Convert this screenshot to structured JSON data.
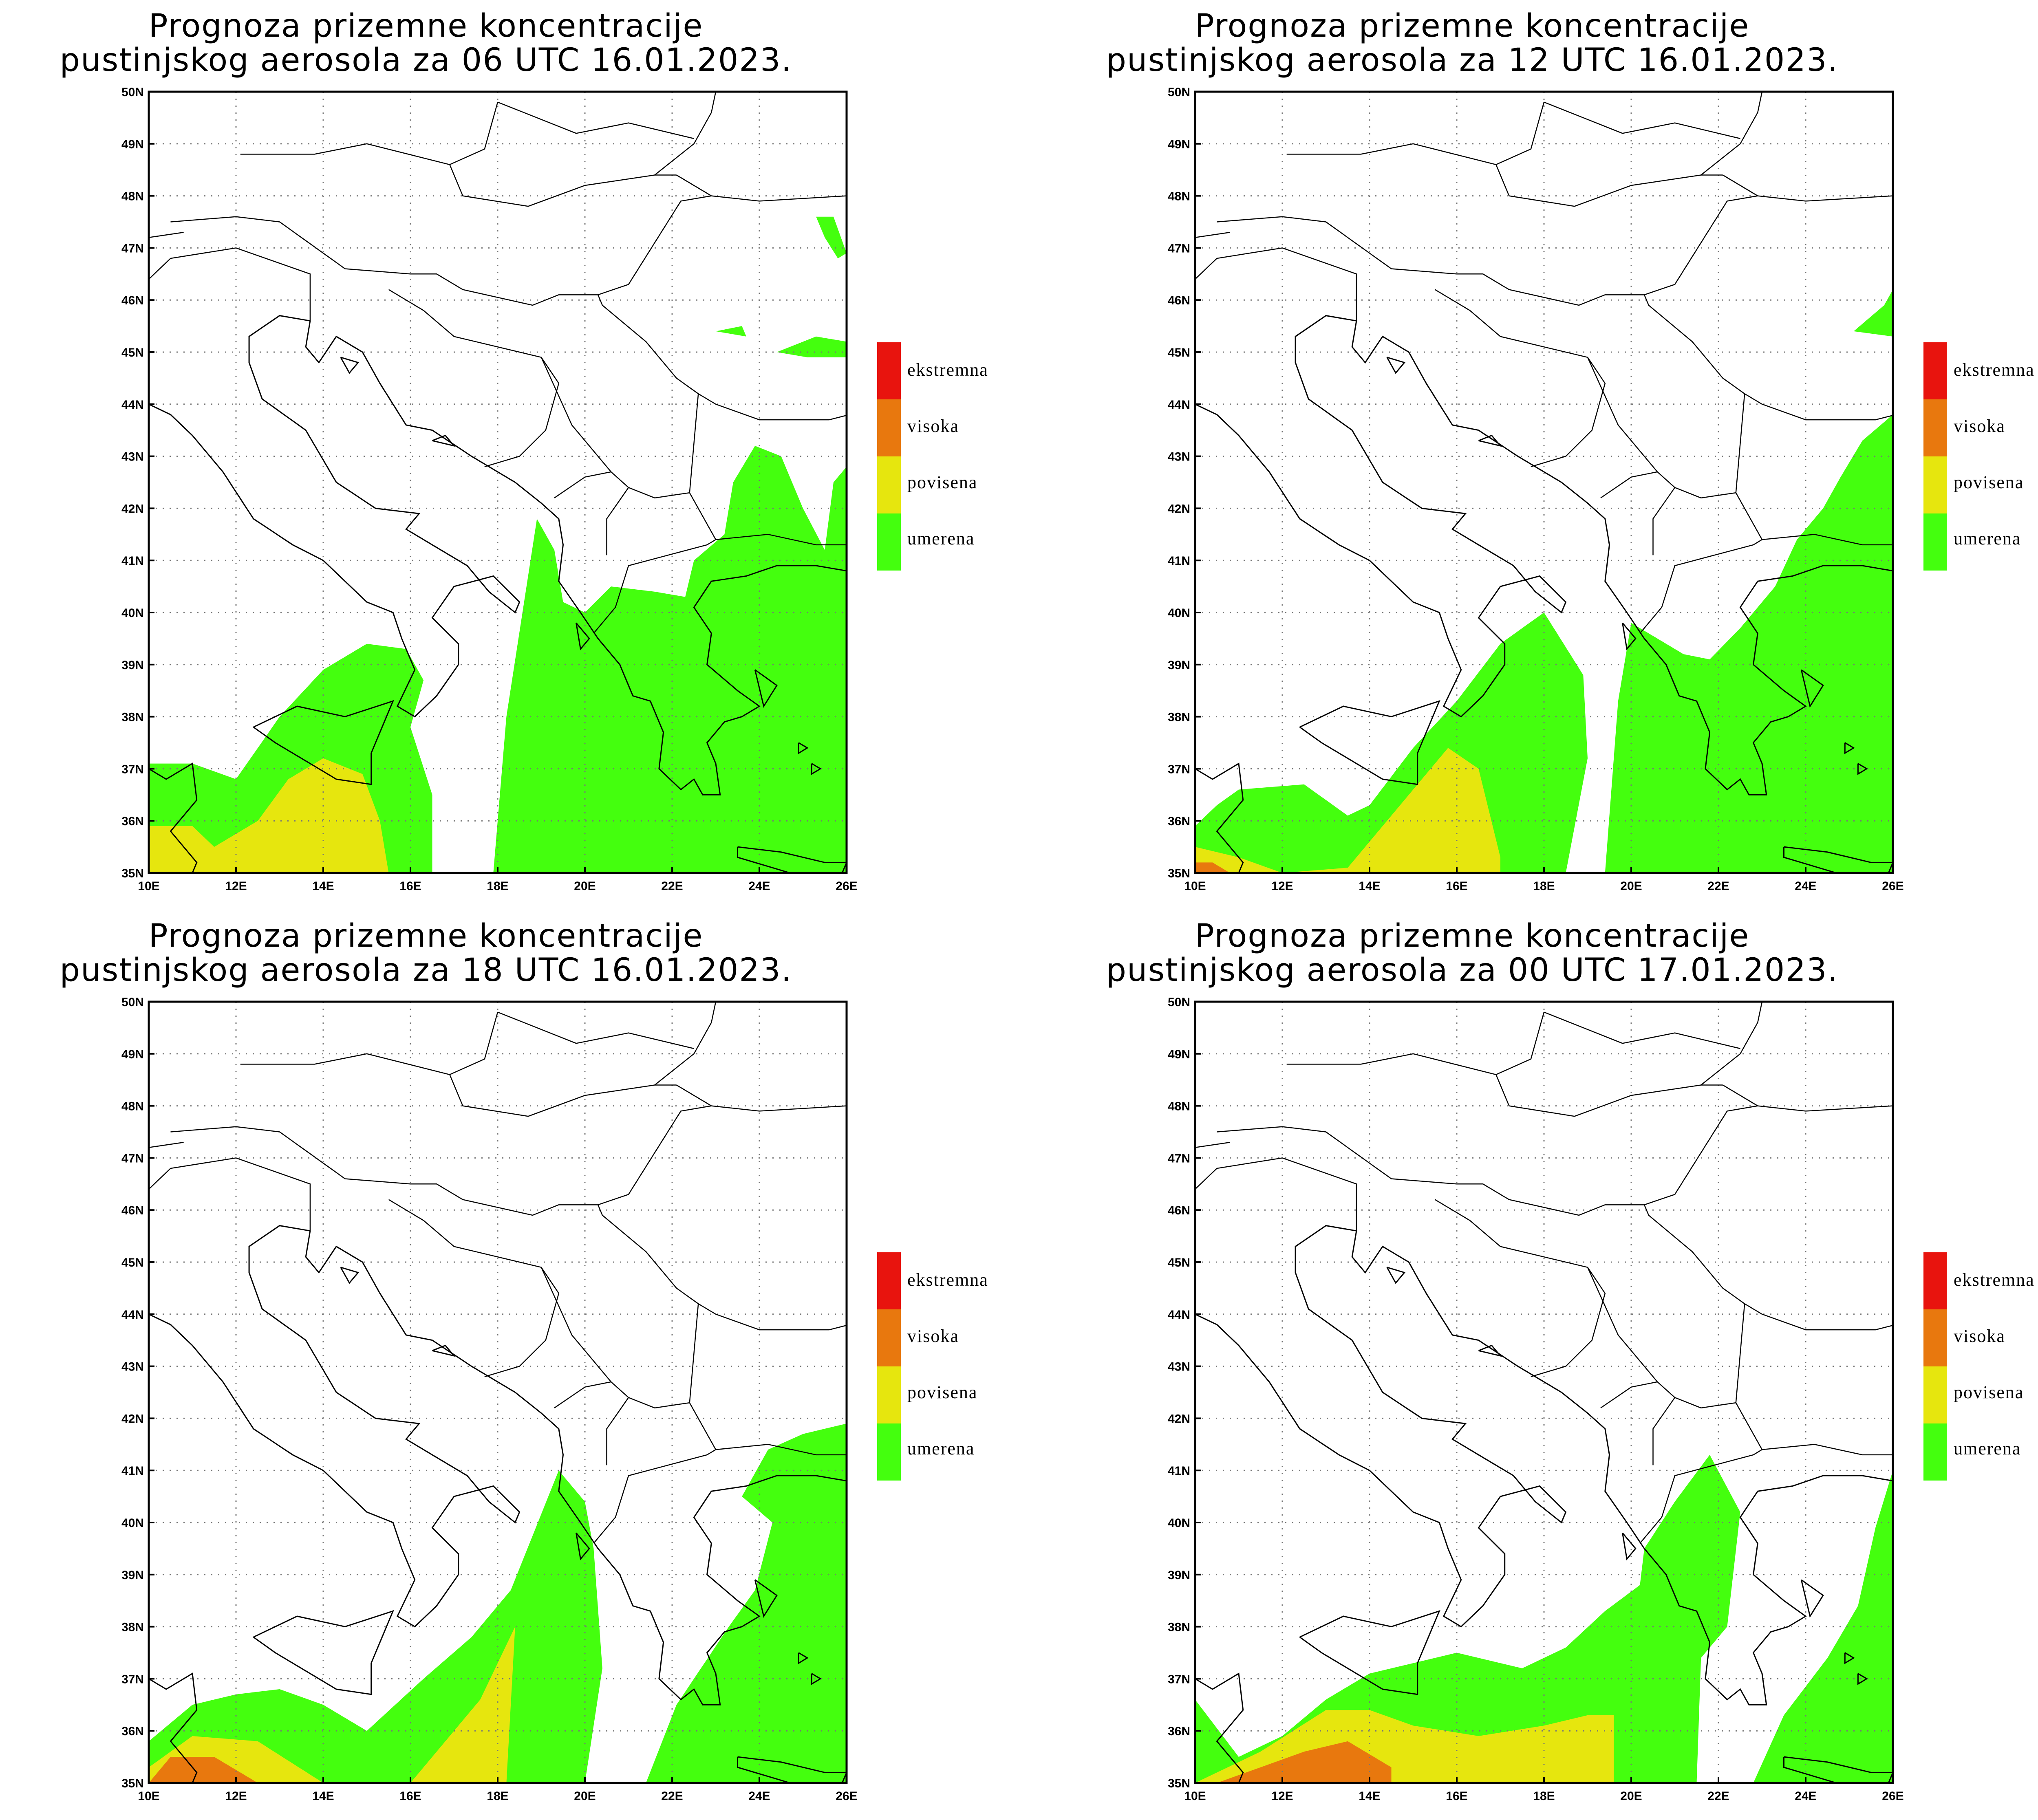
{
  "title_line1": "Prognoza prizemne koncentracije",
  "panels": [
    {
      "title_line2": "pustinjskog aerosola za 06 UTC 16.01.2023."
    },
    {
      "title_line2": "pustinjskog aerosola za 12 UTC 16.01.2023."
    },
    {
      "title_line2": "pustinjskog aerosola za 18 UTC 16.01.2023."
    },
    {
      "title_line2": "pustinjskog aerosola za 00 UTC 17.01.2023."
    }
  ],
  "legend": [
    {
      "label": "ekstremna",
      "color": "#e8140e"
    },
    {
      "label": "visoka",
      "color": "#e8780e"
    },
    {
      "label": "povisena",
      "color": "#e6e60e"
    },
    {
      "label": "umerena",
      "color": "#44ff0e"
    }
  ],
  "lat_ticks": [
    "35N",
    "36N",
    "37N",
    "38N",
    "39N",
    "40N",
    "41N",
    "42N",
    "43N",
    "44N",
    "45N",
    "46N",
    "47N",
    "48N",
    "49N",
    "50N"
  ],
  "lon_ticks": [
    "10E",
    "12E",
    "14E",
    "16E",
    "18E",
    "20E",
    "22E",
    "24E",
    "26E"
  ],
  "colors": {
    "umerena": "#44ff0e",
    "povisena": "#e6e60e",
    "visoka": "#e8780e",
    "ekstremna": "#e8140e"
  }
}
